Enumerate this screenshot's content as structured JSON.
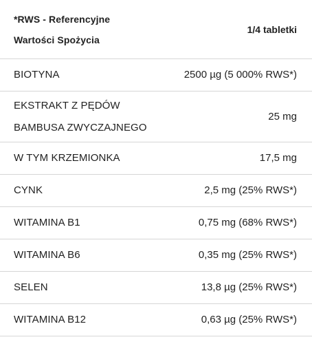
{
  "header": {
    "name_line1": "*RWS - Referencyjne",
    "name_line2": "Wartości Spożycia",
    "value": "1/4 tabletki"
  },
  "rows": [
    {
      "name": "BIOTYNA",
      "value": "2500 µg (5 000% RWS*)"
    },
    {
      "name_line1": "EKSTRAKT Z PĘDÓW",
      "name_line2": "BAMBUSA ZWYCZAJNEGO",
      "value": "25 mg"
    },
    {
      "name": "W TYM KRZEMIONKA",
      "value": "17,5 mg"
    },
    {
      "name": "CYNK",
      "value": "2,5 mg (25% RWS*)"
    },
    {
      "name": "WITAMINA B1",
      "value": "0,75 mg (68% RWS*)"
    },
    {
      "name": "WITAMINA B6",
      "value": "0,35 mg (25% RWS*)"
    },
    {
      "name": "SELEN",
      "value": "13,8 µg (25% RWS*)"
    },
    {
      "name": "WITAMINA B12",
      "value": "0,63 µg (25% RWS*)"
    }
  ]
}
